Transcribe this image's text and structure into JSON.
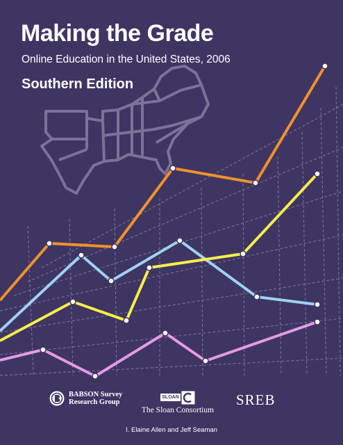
{
  "cover": {
    "title": "Making the Grade",
    "subtitle": "Online Education in the United States, 2006",
    "edition": "Southern Edition",
    "authors": "I. Elaine Allen and Jeff Seaman",
    "colors": {
      "background": "#3f3563",
      "orange_line": "#f2922a",
      "yellow_line": "#f7ef4a",
      "blue_line": "#9fd2f2",
      "pink_line": "#e79ae6",
      "map_outline": "#7c7199"
    },
    "map": "southern-states-outline"
  },
  "logos": {
    "babson_line1": "BABSON Survey",
    "babson_line2": "Research Group",
    "sloan_box": "SLOAN",
    "sloan_name": "The Sloan Consortium",
    "sreb": "SREB"
  }
}
